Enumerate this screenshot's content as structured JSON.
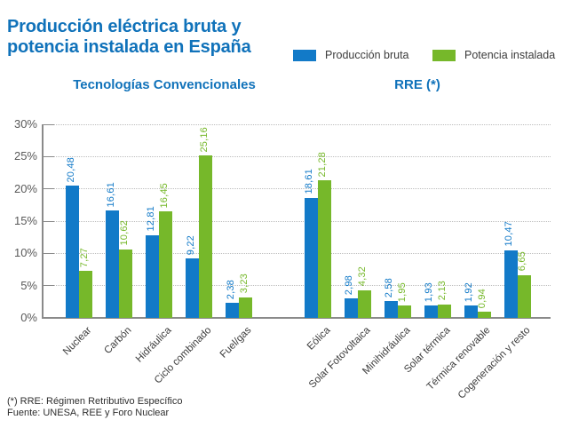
{
  "title": "Producción eléctrica bruta y potencia instalada en España",
  "legend": [
    {
      "label": "Producción bruta",
      "color": "#127ac8"
    },
    {
      "label": "Potencia instalada",
      "color": "#76b82a"
    }
  ],
  "colors": {
    "brand_blue": "#1072ba",
    "series_blue": "#127ac8",
    "series_green": "#76b82a",
    "axis_gray": "#8a8a8a"
  },
  "footnotes": [
    "(*) RRE: Régimen Retributivo Específico",
    "Fuente: UNESA, REE y Foro Nuclear"
  ],
  "chart_data": {
    "type": "bar",
    "title": "Producción eléctrica bruta y potencia instalada en España",
    "ylabel": "",
    "xlabel": "",
    "ylim": [
      0,
      30
    ],
    "yticks": [
      "0%",
      "5%",
      "10%",
      "15%",
      "20%",
      "25%",
      "30%"
    ],
    "grid": "dotted horizontal",
    "legend_position": "top-right",
    "value_label_format": "comma-decimal-2",
    "groups": [
      {
        "label": "Tecnologías Convencionales",
        "categories": [
          "Nuclear",
          "Carbón",
          "Hidráulica",
          "Ciclo combinado",
          "Fuel/gas"
        ],
        "series": [
          {
            "name": "Producción bruta",
            "values": [
              20.48,
              16.61,
              12.81,
              9.22,
              2.38
            ]
          },
          {
            "name": "Potencia instalada",
            "values": [
              7.27,
              10.62,
              16.45,
              25.16,
              3.23
            ]
          }
        ]
      },
      {
        "label": "RRE (*)",
        "categories": [
          "Eólica",
          "Solar Fotovoltaica",
          "Minihidráulica",
          "Solar térmica",
          "Térmica renovable",
          "Cogeneración y resto"
        ],
        "series": [
          {
            "name": "Producción bruta",
            "values": [
              18.61,
              2.98,
              2.58,
              1.93,
              1.92,
              10.47
            ]
          },
          {
            "name": "Potencia instalada",
            "values": [
              21.28,
              4.32,
              1.95,
              2.13,
              0.94,
              6.65
            ]
          }
        ]
      }
    ]
  }
}
